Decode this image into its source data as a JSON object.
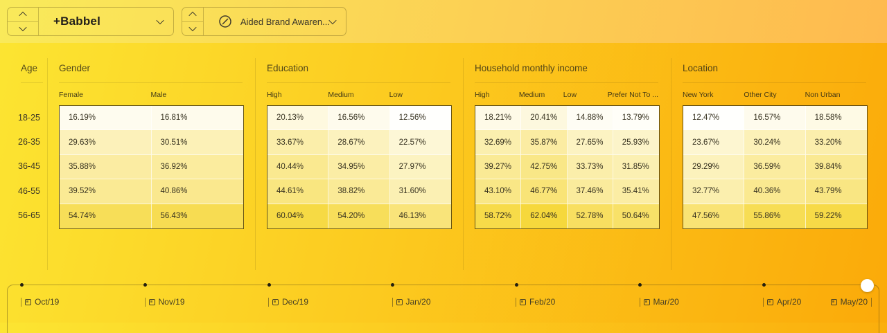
{
  "header": {
    "brand_selector": {
      "label": "+Babbel"
    },
    "metric_selector": {
      "label": "Aided Brand Awaren...",
      "icon": "trend-circle-icon"
    }
  },
  "age": {
    "title": "Age",
    "groups": [
      "18-25",
      "26-35",
      "36-45",
      "46-55",
      "56-65"
    ]
  },
  "sections": [
    {
      "title": "Gender",
      "columns": [
        "Female",
        "Male"
      ],
      "rows": [
        [
          "16.19%",
          "16.81%"
        ],
        [
          "29.63%",
          "30.51%"
        ],
        [
          "35.88%",
          "36.92%"
        ],
        [
          "39.52%",
          "40.86%"
        ],
        [
          "54.74%",
          "56.43%"
        ]
      ]
    },
    {
      "title": "Education",
      "columns": [
        "High",
        "Medium",
        "Low"
      ],
      "rows": [
        [
          "20.13%",
          "16.56%",
          "12.56%"
        ],
        [
          "33.67%",
          "28.67%",
          "22.57%"
        ],
        [
          "40.44%",
          "34.95%",
          "27.97%"
        ],
        [
          "44.61%",
          "38.82%",
          "31.60%"
        ],
        [
          "60.04%",
          "54.20%",
          "46.13%"
        ]
      ]
    },
    {
      "title": "Household monthly income",
      "columns": [
        "High",
        "Medium",
        "Low",
        "Prefer Not To ..."
      ],
      "rows": [
        [
          "18.21%",
          "20.41%",
          "14.88%",
          "13.79%"
        ],
        [
          "32.69%",
          "35.87%",
          "27.65%",
          "25.93%"
        ],
        [
          "39.27%",
          "42.75%",
          "33.73%",
          "31.85%"
        ],
        [
          "43.10%",
          "46.77%",
          "37.46%",
          "35.41%"
        ],
        [
          "58.72%",
          "62.04%",
          "52.78%",
          "50.64%"
        ]
      ]
    },
    {
      "title": "Location",
      "columns": [
        "New York",
        "Other City",
        "Non Urban"
      ],
      "rows": [
        [
          "12.47%",
          "16.57%",
          "18.58%"
        ],
        [
          "23.67%",
          "30.24%",
          "33.20%"
        ],
        [
          "29.29%",
          "36.59%",
          "39.84%"
        ],
        [
          "32.77%",
          "40.36%",
          "43.79%"
        ],
        [
          "47.56%",
          "55.86%",
          "59.22%"
        ]
      ]
    }
  ],
  "timeline": {
    "months": [
      "Oct/19",
      "Nov/19",
      "Dec/19",
      "Jan/20",
      "Feb/20",
      "Mar/20",
      "Apr/20",
      "May/20"
    ],
    "selected": "May/20"
  },
  "colors": {
    "bg_gradient_left": "#FCE532",
    "bg_gradient_right": "#FBAA09",
    "topbar_gradient_left": "#F9EA5A",
    "topbar_gradient_right": "#FEBA4F",
    "heatmap_low": "#FFFFFF",
    "heatmap_high": "#F6D83C",
    "heatmap_min_value": 12,
    "heatmap_max_value": 62,
    "text_dark": "#36311F",
    "table_border": "#4B431F"
  }
}
